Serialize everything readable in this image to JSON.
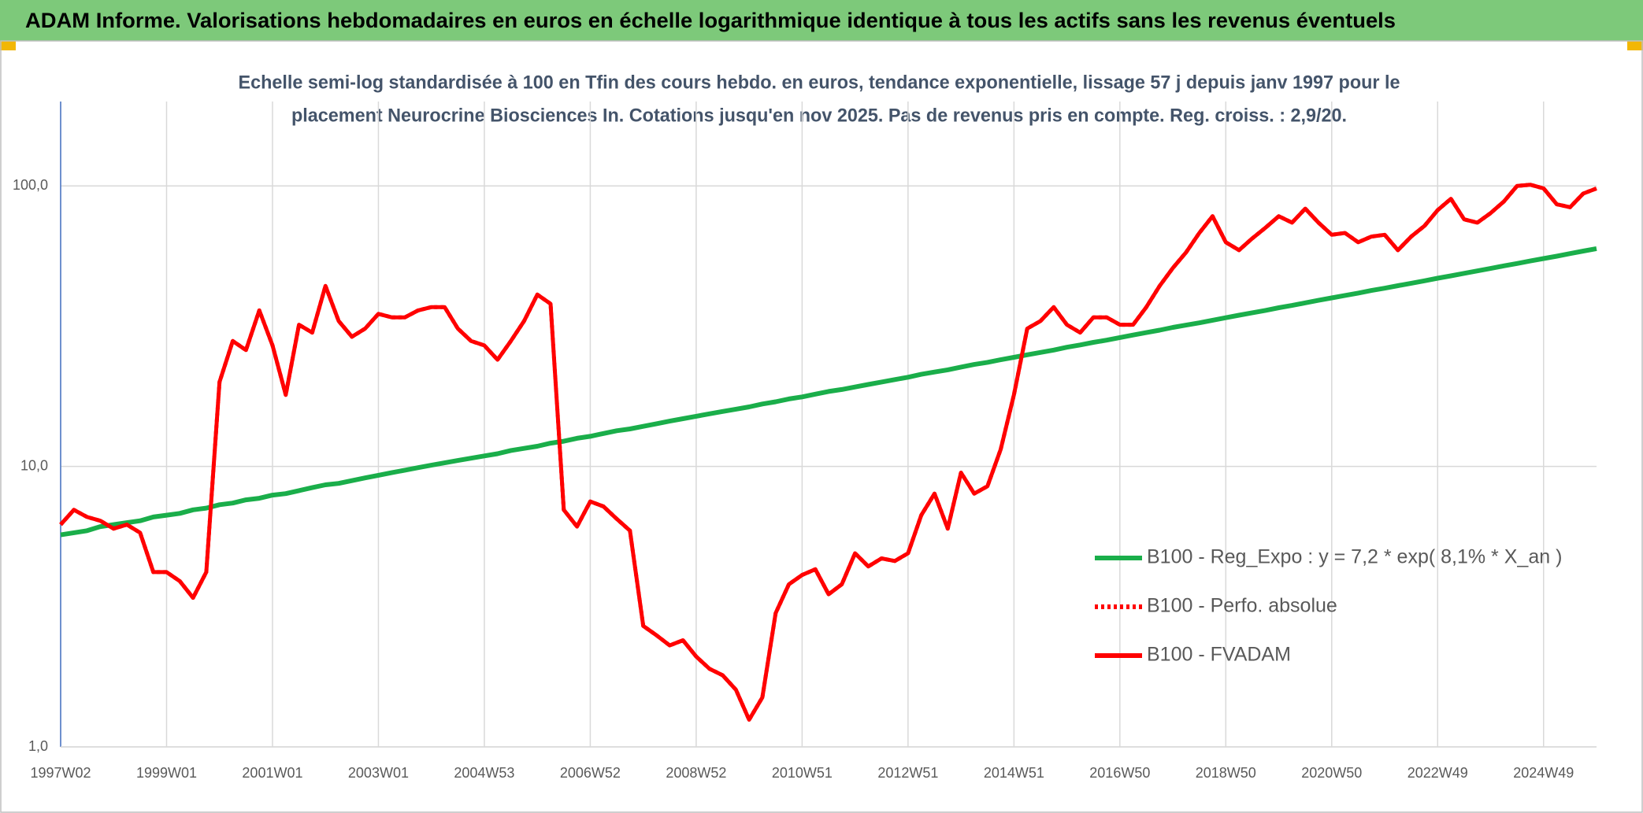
{
  "header": {
    "title": "ADAM Informe. Valorisations hebdomadaires en euros en échelle logarithmique identique à tous les actifs sans les revenus éventuels"
  },
  "chart_data": {
    "type": "line",
    "title": "Echelle semi-log standardisée à 100 en Tfin des cours hebdo. en euros, tendance exponentielle, lissage 57 j depuis janv 1997 pour le",
    "subtitle": "placement Neurocrine Biosciences In. Cotations jusqu'en nov 2025. Pas de revenus pris en compte. Reg. croiss. : 2,9/20.",
    "log_scale": true,
    "grid": true,
    "legend": "right",
    "ylim": [
      1,
      200
    ],
    "yticks": [
      {
        "value": 1,
        "label": "1,0"
      },
      {
        "value": 10,
        "label": "10,0"
      },
      {
        "value": 100,
        "label": "100,0"
      }
    ],
    "categories": [
      "1997W02",
      null,
      null,
      null,
      null,
      null,
      null,
      null,
      "1999W01",
      null,
      null,
      null,
      null,
      null,
      null,
      null,
      "2001W01",
      null,
      null,
      null,
      null,
      null,
      null,
      null,
      "2003W01",
      null,
      null,
      null,
      null,
      null,
      null,
      null,
      "2004W53",
      null,
      null,
      null,
      null,
      null,
      null,
      null,
      "2006W52",
      null,
      null,
      null,
      null,
      null,
      null,
      null,
      "2008W52",
      null,
      null,
      null,
      null,
      null,
      null,
      null,
      "2010W51",
      null,
      null,
      null,
      null,
      null,
      null,
      null,
      "2012W51",
      null,
      null,
      null,
      null,
      null,
      null,
      null,
      "2014W51",
      null,
      null,
      null,
      null,
      null,
      null,
      null,
      "2016W50",
      null,
      null,
      null,
      null,
      null,
      null,
      null,
      "2018W50",
      null,
      null,
      null,
      null,
      null,
      null,
      null,
      "2020W50",
      null,
      null,
      null,
      null,
      null,
      null,
      null,
      "2022W49",
      null,
      null,
      null,
      null,
      null,
      null,
      null,
      "2024W49",
      null,
      null,
      null,
      null
    ],
    "series": [
      {
        "name": "B100 - Reg_Expo : y = 7,2 * exp( 8,1% *  X_an )",
        "color": "#1aae4a",
        "style": "solid",
        "values": [
          5.7,
          5.8,
          5.9,
          6.1,
          6.2,
          6.3,
          6.4,
          6.6,
          6.7,
          6.8,
          7.0,
          7.1,
          7.3,
          7.4,
          7.6,
          7.7,
          7.9,
          8.0,
          8.2,
          8.4,
          8.6,
          8.7,
          8.9,
          9.1,
          9.3,
          9.5,
          9.7,
          9.9,
          10.1,
          10.3,
          10.5,
          10.7,
          10.9,
          11.1,
          11.4,
          11.6,
          11.8,
          12.1,
          12.3,
          12.6,
          12.8,
          13.1,
          13.4,
          13.6,
          13.9,
          14.2,
          14.5,
          14.8,
          15.1,
          15.4,
          15.7,
          16.0,
          16.3,
          16.7,
          17.0,
          17.4,
          17.7,
          18.1,
          18.5,
          18.8,
          19.2,
          19.6,
          20.0,
          20.4,
          20.8,
          21.3,
          21.7,
          22.1,
          22.6,
          23.1,
          23.5,
          24.0,
          24.5,
          25.0,
          25.5,
          26.0,
          26.6,
          27.1,
          27.7,
          28.2,
          28.8,
          29.4,
          30.0,
          30.6,
          31.3,
          31.9,
          32.5,
          33.2,
          33.9,
          34.6,
          35.3,
          36.0,
          36.8,
          37.5,
          38.3,
          39.1,
          39.9,
          40.7,
          41.5,
          42.4,
          43.2,
          44.1,
          45.0,
          45.9,
          46.9,
          47.8,
          48.8,
          49.8,
          50.8,
          51.9,
          52.9,
          54.0,
          55.1,
          56.2,
          57.4,
          58.6,
          59.8
        ]
      },
      {
        "name": "B100 - Perfo. absolue",
        "color": "#ff0000",
        "style": "dotted",
        "values": [
          6.2,
          7.0,
          6.6,
          6.4,
          6.0,
          6.2,
          5.8,
          4.2,
          4.2,
          3.9,
          3.4,
          4.2,
          20,
          28,
          26,
          36,
          27,
          18,
          32,
          30,
          44,
          33,
          29,
          31,
          35,
          34,
          34,
          36,
          37,
          37,
          31,
          28,
          27,
          24,
          28,
          33,
          41,
          38,
          7,
          6.1,
          7.5,
          7.2,
          6.5,
          5.9,
          2.7,
          2.5,
          2.3,
          2.4,
          2.1,
          1.9,
          1.8,
          1.6,
          1.25,
          1.5,
          3.0,
          3.8,
          4.1,
          4.3,
          3.5,
          3.8,
          4.9,
          4.4,
          4.7,
          4.6,
          4.9,
          6.7,
          8.0,
          6.0,
          9.5,
          8.0,
          8.5,
          11.5,
          18,
          31,
          33,
          37,
          32,
          30,
          34,
          34,
          32,
          32,
          37,
          44,
          51,
          58,
          68,
          78,
          63,
          59,
          65,
          71,
          78,
          74,
          83,
          74,
          67,
          68,
          63,
          66,
          67,
          59,
          66,
          72,
          82,
          90,
          76,
          74,
          80,
          88,
          100,
          101,
          98,
          86,
          84,
          94,
          98
        ]
      },
      {
        "name": "B100 - FVADAM",
        "color": "#ff0000",
        "style": "solid",
        "values": [
          6.2,
          7.0,
          6.6,
          6.4,
          6.0,
          6.2,
          5.8,
          4.2,
          4.2,
          3.9,
          3.4,
          4.2,
          20,
          28,
          26,
          36,
          27,
          18,
          32,
          30,
          44,
          33,
          29,
          31,
          35,
          34,
          34,
          36,
          37,
          37,
          31,
          28,
          27,
          24,
          28,
          33,
          41,
          38,
          7,
          6.1,
          7.5,
          7.2,
          6.5,
          5.9,
          2.7,
          2.5,
          2.3,
          2.4,
          2.1,
          1.9,
          1.8,
          1.6,
          1.25,
          1.5,
          3.0,
          3.8,
          4.1,
          4.3,
          3.5,
          3.8,
          4.9,
          4.4,
          4.7,
          4.6,
          4.9,
          6.7,
          8.0,
          6.0,
          9.5,
          8.0,
          8.5,
          11.5,
          18,
          31,
          33,
          37,
          32,
          30,
          34,
          34,
          32,
          32,
          37,
          44,
          51,
          58,
          68,
          78,
          63,
          59,
          65,
          71,
          78,
          74,
          83,
          74,
          67,
          68,
          63,
          66,
          67,
          59,
          66,
          72,
          82,
          90,
          76,
          74,
          80,
          88,
          100,
          101,
          98,
          86,
          84,
          94,
          98
        ]
      }
    ]
  }
}
